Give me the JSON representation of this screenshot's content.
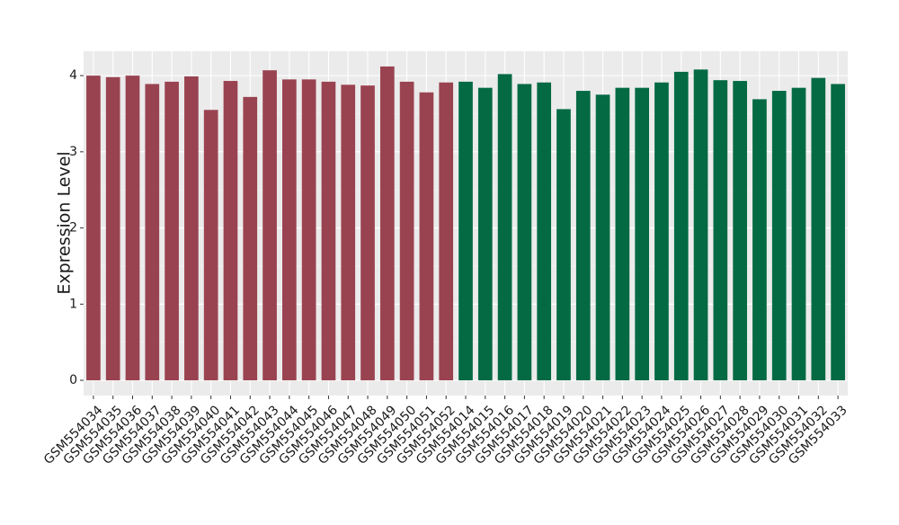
{
  "chart_data": {
    "type": "bar",
    "y_label": "Expression Level",
    "categories": [
      "GSM554034",
      "GSM554035",
      "GSM554036",
      "GSM554037",
      "GSM554038",
      "GSM554039",
      "GSM554040",
      "GSM554041",
      "GSM554042",
      "GSM554043",
      "GSM554044",
      "GSM554045",
      "GSM554046",
      "GSM554047",
      "GSM554048",
      "GSM554049",
      "GSM554050",
      "GSM554051",
      "GSM554052",
      "GSM554014",
      "GSM554015",
      "GSM554016",
      "GSM554017",
      "GSM554018",
      "GSM554019",
      "GSM554020",
      "GSM554021",
      "GSM554022",
      "GSM554023",
      "GSM554024",
      "GSM554025",
      "GSM554026",
      "GSM554027",
      "GSM554028",
      "GSM554029",
      "GSM554030",
      "GSM554031",
      "GSM554032",
      "GSM554033"
    ],
    "values": [
      4.0,
      3.98,
      4.0,
      3.89,
      3.92,
      3.99,
      3.55,
      3.93,
      3.72,
      4.07,
      3.95,
      3.95,
      3.92,
      3.88,
      3.87,
      4.12,
      3.92,
      3.78,
      3.91,
      3.92,
      3.84,
      4.02,
      3.89,
      3.91,
      3.56,
      3.8,
      3.75,
      3.84,
      3.84,
      3.91,
      4.05,
      4.08,
      3.94,
      3.93,
      3.69,
      3.8,
      3.84,
      3.97,
      3.89
    ],
    "colors": [
      "#9a4350",
      "#9a4350",
      "#9a4350",
      "#9a4350",
      "#9a4350",
      "#9a4350",
      "#9a4350",
      "#9a4350",
      "#9a4350",
      "#9a4350",
      "#9a4350",
      "#9a4350",
      "#9a4350",
      "#9a4350",
      "#9a4350",
      "#9a4350",
      "#9a4350",
      "#9a4350",
      "#9a4350",
      "#036a44",
      "#036a44",
      "#036a44",
      "#036a44",
      "#036a44",
      "#036a44",
      "#036a44",
      "#036a44",
      "#036a44",
      "#036a44",
      "#036a44",
      "#036a44",
      "#036a44",
      "#036a44",
      "#036a44",
      "#036a44",
      "#036a44",
      "#036a44",
      "#036a44",
      "#036a44"
    ],
    "ylim": [
      -0.2,
      4.32
    ],
    "yticks": [
      0,
      1,
      2,
      3,
      4
    ],
    "grid": true
  }
}
